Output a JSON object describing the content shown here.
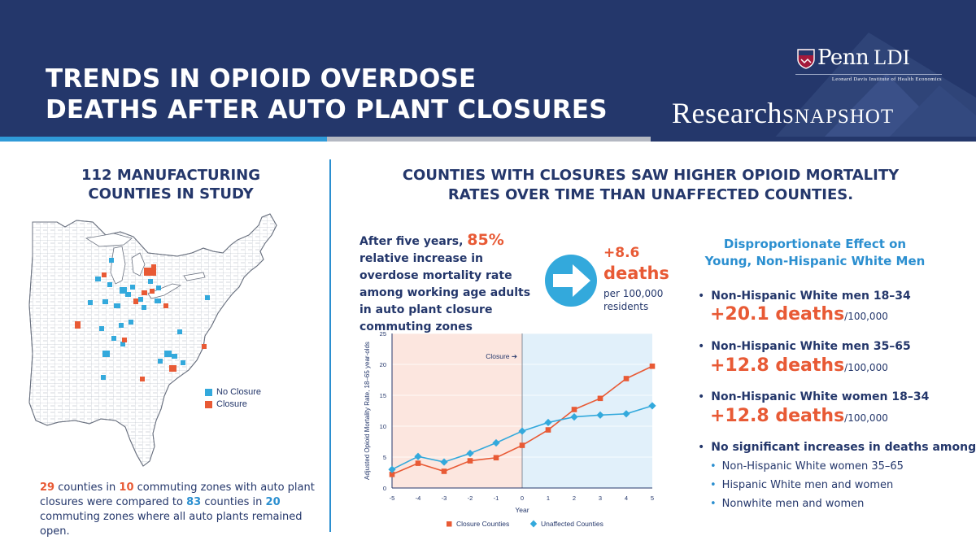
{
  "header": {
    "title_line1": "TRENDS IN OPIOID OVERDOSE",
    "title_line2": "DEATHS AFTER AUTO PLANT CLOSURES",
    "logo_penn": "Penn",
    "logo_ldi": "LDI",
    "logo_subtitle": "Leonard Davis Institute of Health Economics",
    "snapshot_research": "Research",
    "snapshot_word": "SNAPSHOT"
  },
  "left": {
    "title_line1": "112 MANUFACTURING",
    "title_line2": "COUNTIES IN STUDY",
    "legend_no_closure": "No Closure",
    "legend_closure": "Closure",
    "note_n1": "29",
    "note_t1": " counties in ",
    "note_n2": "10",
    "note_t2": " commuting zones with auto plant closures were compared to ",
    "note_n3": "83",
    "note_t3": " counties in ",
    "note_n4": "20",
    "note_t4": " commuting zones where all auto plants remained open."
  },
  "right": {
    "title_line1": "COUNTIES WITH CLOSURES SAW HIGHER OPIOID MORTALITY",
    "title_line2": "RATES OVER TIME THAN UNAFFECTED COUNTIES.",
    "stat_prefix": "After five years, ",
    "stat_pct": "85%",
    "stat_rest": "relative increase in overdose mortality rate among working age adults in auto plant closure commuting zones",
    "plus_value": "+8.6",
    "deaths_label": "deaths",
    "per_label": "per 100,000 residents",
    "disp_title_line1": "Disproportionate Effect on",
    "disp_title_line2": "Young, Non-Hispanic White Men",
    "groups": [
      {
        "label": "Non-Hispanic White men 18–34",
        "value": "+20.1 deaths",
        "unit": "/100,000"
      },
      {
        "label": "Non-Hispanic White men 35–65",
        "value": "+12.8 deaths",
        "unit": "/100,000"
      },
      {
        "label": "Non-Hispanic White women 18–34",
        "value": "+12.8 deaths",
        "unit": "/100,000"
      }
    ],
    "no_sig_label": "No significant increases in deaths among:",
    "no_sig_items": [
      "Non-Hispanic White women 35–65",
      "Hispanic White men and women",
      "Nonwhite men and women"
    ]
  },
  "colors": {
    "navy": "#24376b",
    "orange": "#e85a35",
    "blue": "#2b8fd0",
    "cyan": "#33a9dc",
    "pre_shade": "#fce6df",
    "post_shade": "#e1f0fa"
  },
  "chart_data": {
    "type": "line",
    "x": [
      -5,
      -4,
      -3,
      -2,
      -1,
      0,
      1,
      2,
      3,
      4,
      5
    ],
    "series": [
      {
        "name": "Closure Counties",
        "marker": "square",
        "values": [
          2.2,
          4.0,
          2.7,
          4.4,
          4.9,
          6.9,
          9.4,
          12.7,
          14.5,
          17.7,
          19.7
        ]
      },
      {
        "name": "Unaffected Counties",
        "marker": "diamond",
        "values": [
          3.0,
          5.1,
          4.2,
          5.6,
          7.3,
          9.2,
          10.6,
          11.5,
          11.8,
          12.0,
          13.3
        ]
      }
    ],
    "xlabel": "Year",
    "ylabel": "Adjusted Opioid Mortality Rate, 18–65 year-olds",
    "xlim": [
      -5,
      5
    ],
    "ylim": [
      0,
      25
    ],
    "yticks": [
      0,
      5,
      10,
      15,
      20,
      25
    ],
    "annotation": "Closure ➔",
    "annotation_x": 0,
    "legend_position": "bottom"
  }
}
